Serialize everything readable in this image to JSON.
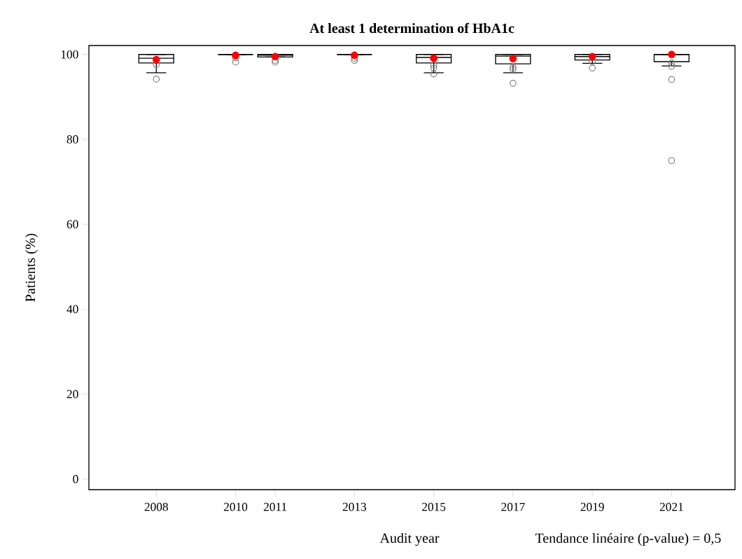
{
  "chart_data": {
    "type": "box",
    "title": "At least 1 determination of HbA1c",
    "xlabel": "Audit year",
    "ylabel": "Patients (%)",
    "annotations": [
      "Tendance linéaire (p-value) = 0,5"
    ],
    "x": [
      2008,
      2010,
      2011,
      2013,
      2015,
      2017,
      2019,
      2021
    ],
    "color": "#000000",
    "boxes": [
      {
        "low": 95.7,
        "q1": 98.0,
        "median": 99.1,
        "q3": 100,
        "high": 100,
        "mean": 98.8,
        "outliers": [
          97.6,
          94.2
        ]
      },
      {
        "low": 100,
        "q1": 100,
        "median": 100,
        "q3": 100,
        "high": 100,
        "mean": 99.8,
        "outliers": [
          98.2,
          99.2
        ]
      },
      {
        "low": 99.4,
        "q1": 99.4,
        "median": 99.8,
        "q3": 100,
        "high": 100,
        "mean": 99.5,
        "outliers": [
          98.2,
          98.6
        ]
      },
      {
        "low": 100,
        "q1": 100,
        "median": 100,
        "q3": 100,
        "high": 100,
        "mean": 99.8,
        "outliers": [
          98.6,
          99.1
        ]
      },
      {
        "low": 95.7,
        "q1": 98.0,
        "median": 99.3,
        "q3": 100,
        "high": 100,
        "mean": 99.1,
        "outliers": [
          97.5,
          96.8,
          95.4
        ]
      },
      {
        "low": 95.7,
        "q1": 97.8,
        "median": 99.6,
        "q3": 100,
        "high": 100,
        "mean": 99.0,
        "outliers": [
          97.0,
          96.5,
          93.2
        ]
      },
      {
        "low": 97.9,
        "q1": 98.7,
        "median": 99.5,
        "q3": 100,
        "high": 100,
        "mean": 99.5,
        "outliers": [
          98.3,
          96.8
        ]
      },
      {
        "low": 97.3,
        "q1": 98.3,
        "median": 100,
        "q3": 100,
        "high": 100,
        "mean": 100,
        "outliers": [
          98.0,
          97.2,
          94.1,
          75.0
        ]
      }
    ],
    "xlim": [
      2006.3,
      2022.6
    ],
    "ylim": [
      -2.5,
      102.1
    ],
    "xticks": [
      2008,
      2010,
      2011,
      2013,
      2015,
      2017,
      2019,
      2021
    ],
    "yticks": [
      0,
      20,
      40,
      60,
      80,
      100
    ],
    "grid": false
  }
}
